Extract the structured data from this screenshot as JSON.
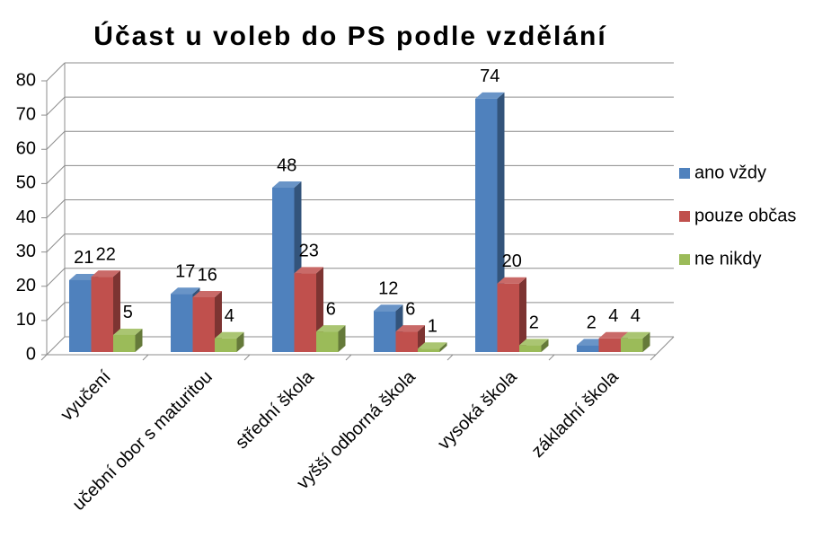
{
  "chart_data": {
    "type": "bar3d",
    "title": "Účast u voleb do PS podle vzdělání",
    "categories": [
      "vyučení",
      "učební obor s maturitou",
      "střední škola",
      "vyšší odborná škola",
      "vysoká škola",
      "základní škola"
    ],
    "series": [
      {
        "name": "ano vždy",
        "color": "#4f81bd",
        "values": [
          21,
          17,
          48,
          12,
          74,
          2
        ]
      },
      {
        "name": "pouze občas",
        "color": "#c0504d",
        "values": [
          22,
          16,
          23,
          6,
          20,
          4
        ]
      },
      {
        "name": "ne nikdy",
        "color": "#9bbb59",
        "values": [
          5,
          4,
          6,
          1,
          2,
          4
        ]
      }
    ],
    "ylim": [
      0,
      80
    ],
    "yticks": [
      0,
      10,
      20,
      30,
      40,
      50,
      60,
      70,
      80
    ],
    "grid": true,
    "legend": "right"
  }
}
